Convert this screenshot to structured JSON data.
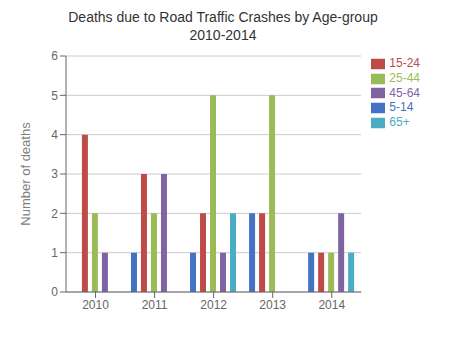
{
  "chart_data": {
    "type": "bar",
    "title": "Deaths due to Road Traffic Crashes by Age-group\n2010-2014",
    "ylabel": "Number of deaths",
    "categories": [
      "2010",
      "2011",
      "2012",
      "2013",
      "2014"
    ],
    "series": [
      {
        "name": "5-14",
        "color": "#4472C4",
        "values": [
          0,
          1,
          1,
          2,
          1
        ]
      },
      {
        "name": "15-24",
        "color": "#BE4B48",
        "values": [
          4,
          3,
          2,
          2,
          1
        ]
      },
      {
        "name": "25-44",
        "color": "#9BBB59",
        "values": [
          2,
          2,
          5,
          5,
          1
        ]
      },
      {
        "name": "45-64",
        "color": "#8064A2",
        "values": [
          1,
          3,
          1,
          0,
          2
        ]
      },
      {
        "name": "65+",
        "color": "#4AACC5",
        "values": [
          0,
          0,
          2,
          0,
          1
        ]
      }
    ],
    "ylim": [
      0,
      6
    ],
    "yticks": [
      0,
      1,
      2,
      3,
      4,
      5,
      6
    ],
    "grid": true,
    "legend": "upper right"
  }
}
